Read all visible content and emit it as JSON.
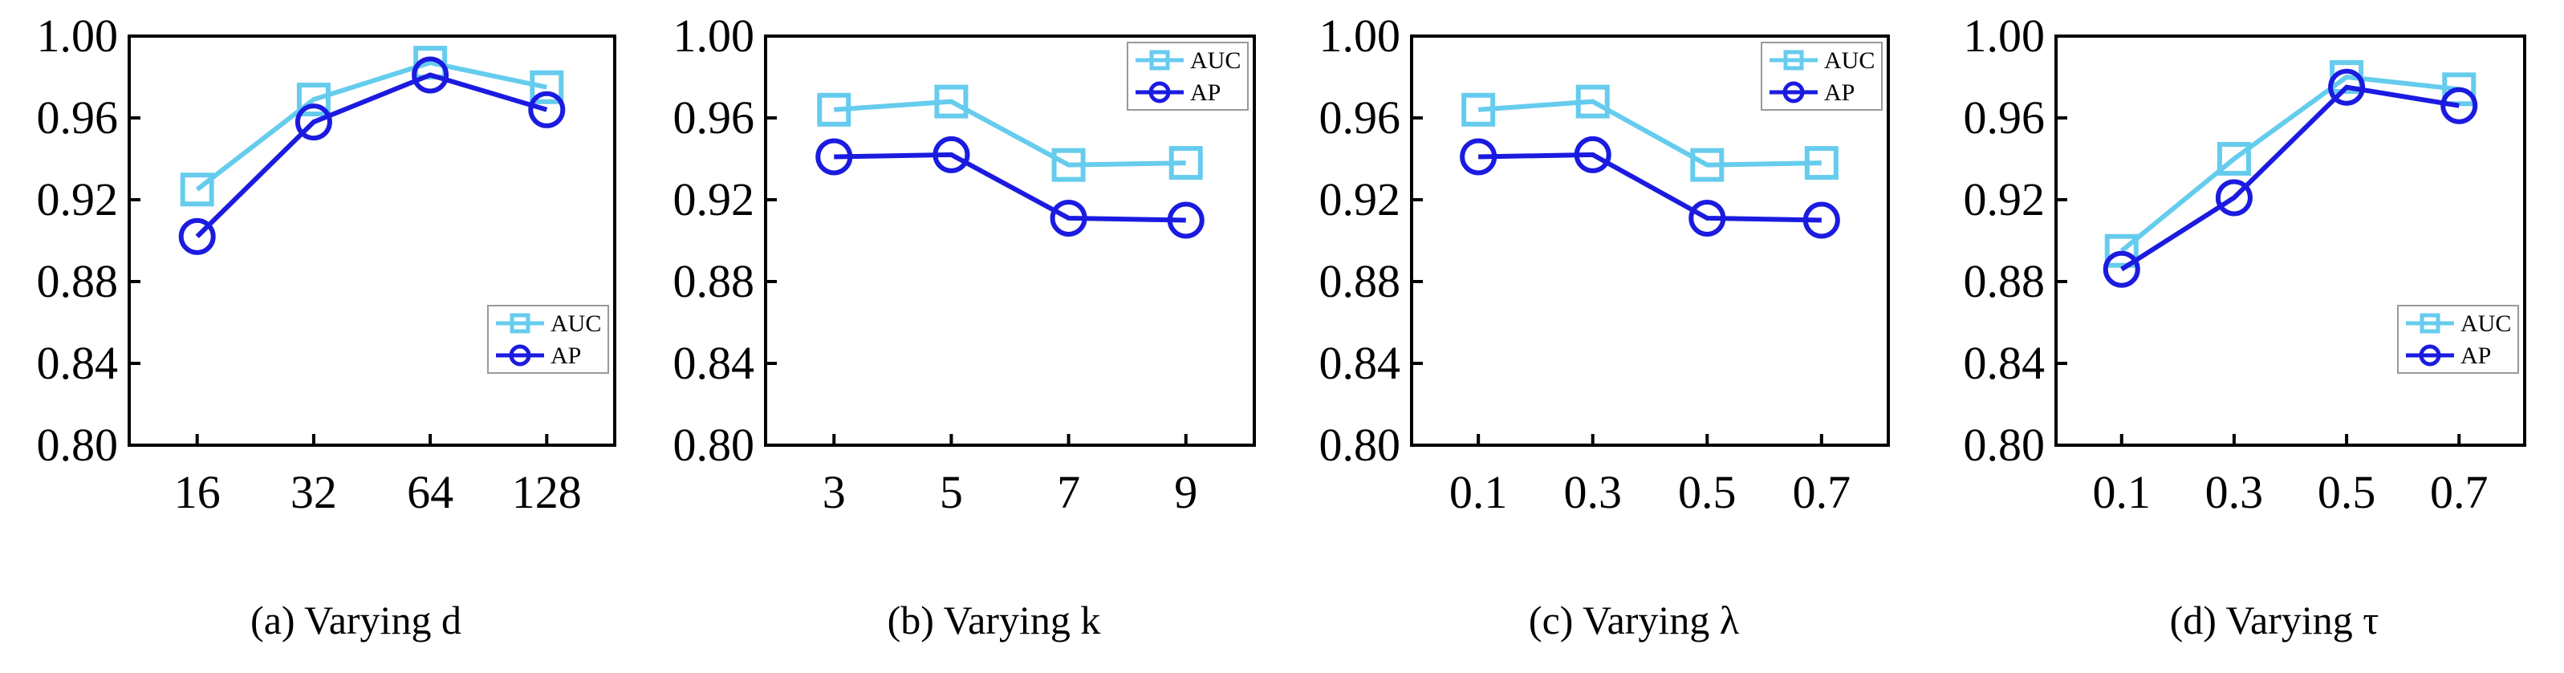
{
  "colors": {
    "auc": "#66ccee",
    "ap": "#1b1be0",
    "axis": "#000000"
  },
  "chart_data": [
    {
      "type": "line",
      "caption": "(a) Varying d",
      "categories": [
        "16",
        "32",
        "64",
        "128"
      ],
      "ylim": [
        0.8,
        1.0
      ],
      "yticks": [
        "0.80",
        "0.84",
        "0.88",
        "0.92",
        "0.96",
        "1.00"
      ],
      "legend_position": "bottom-right",
      "series": [
        {
          "name": "AUC",
          "marker": "square",
          "values": [
            0.925,
            0.969,
            0.987,
            0.975
          ]
        },
        {
          "name": "AP",
          "marker": "circle",
          "values": [
            0.902,
            0.958,
            0.981,
            0.964
          ]
        }
      ]
    },
    {
      "type": "line",
      "caption": "(b) Varying k",
      "categories": [
        "3",
        "5",
        "7",
        "9"
      ],
      "ylim": [
        0.8,
        1.0
      ],
      "yticks": [
        "0.80",
        "0.84",
        "0.88",
        "0.92",
        "0.96",
        "1.00"
      ],
      "legend_position": "top-right",
      "series": [
        {
          "name": "AUC",
          "marker": "square",
          "values": [
            0.964,
            0.968,
            0.937,
            0.938
          ]
        },
        {
          "name": "AP",
          "marker": "circle",
          "values": [
            0.941,
            0.942,
            0.911,
            0.91
          ]
        }
      ]
    },
    {
      "type": "line",
      "caption": "(c) Varying λ",
      "categories": [
        "0.1",
        "0.3",
        "0.5",
        "0.7"
      ],
      "ylim": [
        0.8,
        1.0
      ],
      "yticks": [
        "0.80",
        "0.84",
        "0.88",
        "0.92",
        "0.96",
        "1.00"
      ],
      "legend_position": "top-right",
      "series": [
        {
          "name": "AUC",
          "marker": "square",
          "values": [
            0.964,
            0.968,
            0.937,
            0.938
          ]
        },
        {
          "name": "AP",
          "marker": "circle",
          "values": [
            0.941,
            0.942,
            0.911,
            0.91
          ]
        }
      ]
    },
    {
      "type": "line",
      "caption": "(d) Varying τ",
      "categories": [
        "0.1",
        "0.3",
        "0.5",
        "0.7"
      ],
      "ylim": [
        0.8,
        1.0
      ],
      "yticks": [
        "0.80",
        "0.84",
        "0.88",
        "0.92",
        "0.96",
        "1.00"
      ],
      "legend_position": "bottom-right",
      "series": [
        {
          "name": "AUC",
          "marker": "square",
          "values": [
            0.895,
            0.94,
            0.98,
            0.974
          ]
        },
        {
          "name": "AP",
          "marker": "circle",
          "values": [
            0.886,
            0.921,
            0.975,
            0.966
          ]
        }
      ]
    }
  ]
}
